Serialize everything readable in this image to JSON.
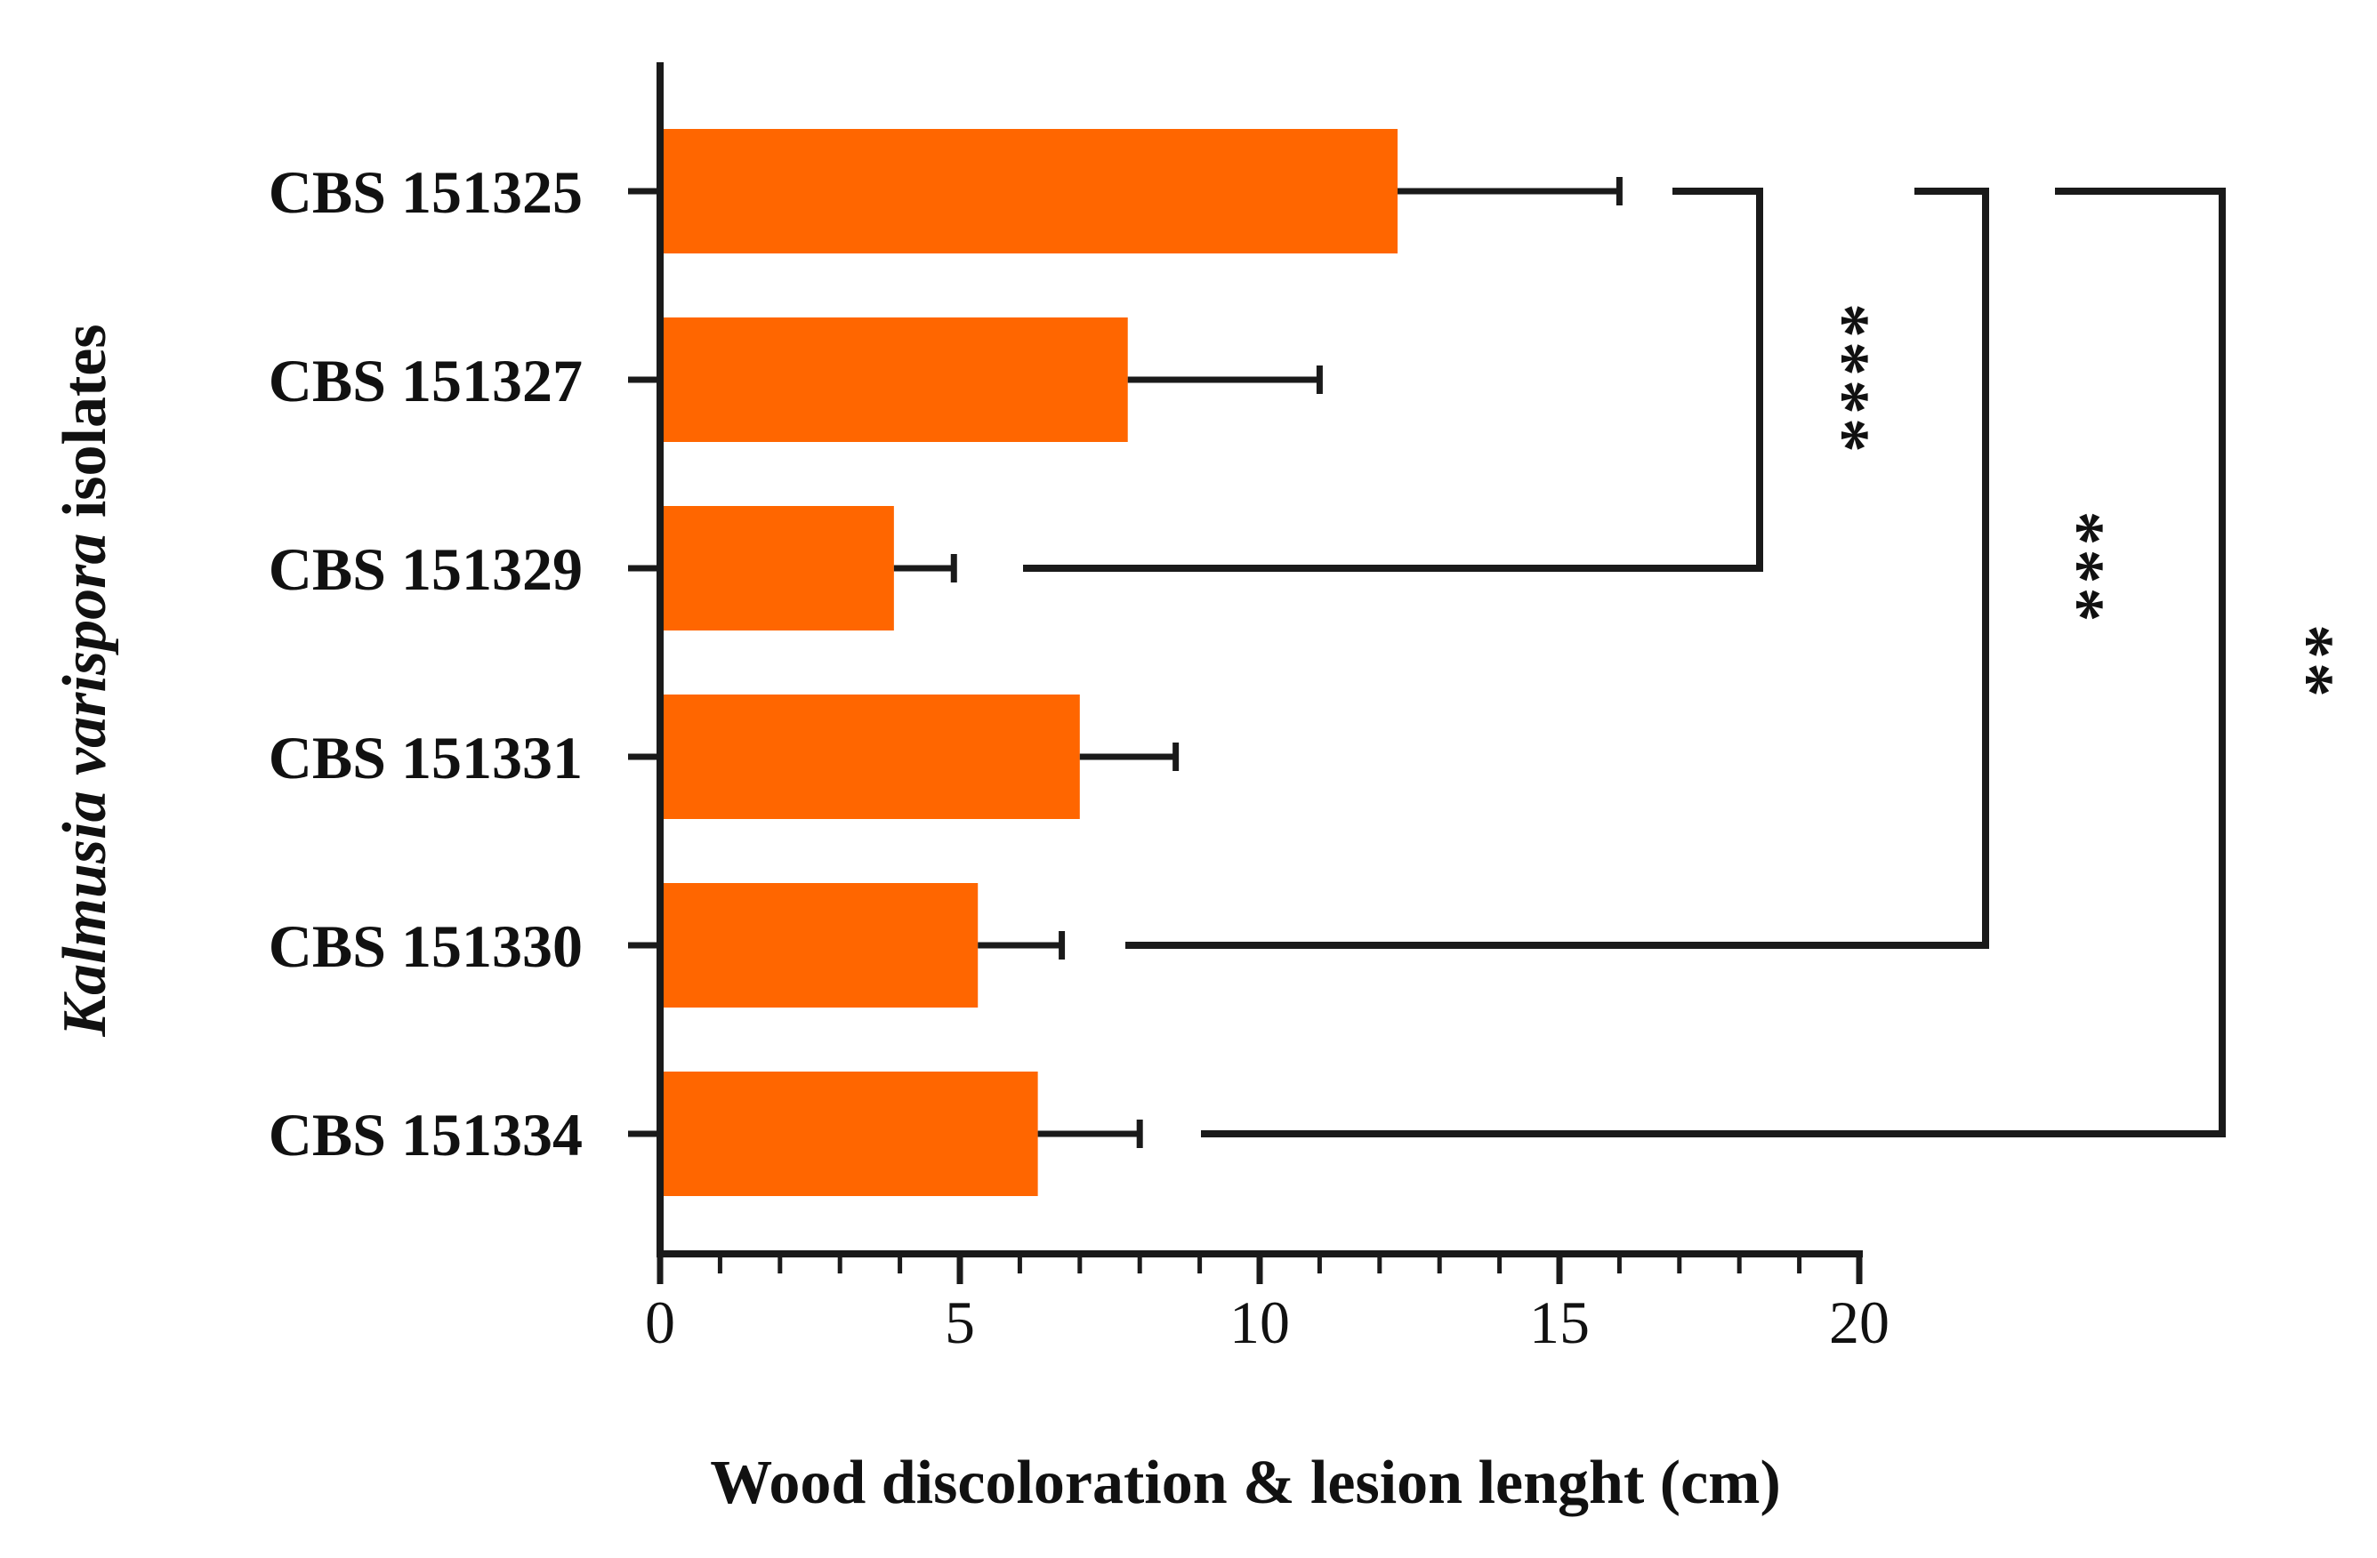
{
  "chart_data": {
    "type": "bar",
    "orientation": "horizontal",
    "categories": [
      "CBS 151325",
      "CBS 151327",
      "CBS 151329",
      "CBS 151331",
      "CBS 151330",
      "CBS 151334"
    ],
    "values": [
      12.3,
      7.8,
      3.9,
      7.0,
      5.3,
      6.3
    ],
    "error_upper": [
      16.0,
      11.0,
      4.9,
      8.6,
      6.7,
      8.0
    ],
    "xlabel": "Wood discoloration & lesion lenght (cm)",
    "ylabel_italic": "Kalmusia varispora",
    "ylabel_rest": " isolates",
    "xlim": [
      0,
      20
    ],
    "xticks": [
      "0",
      "5",
      "10",
      "15",
      "20"
    ],
    "grid": false,
    "bar_color": "#ff6600",
    "significance": [
      {
        "from": "CBS 151325",
        "to": "CBS 151329",
        "label": "****"
      },
      {
        "from": "CBS 151325",
        "to": "CBS 151330",
        "label": "***"
      },
      {
        "from": "CBS 151325",
        "to": "CBS 151334",
        "label": "**"
      }
    ]
  }
}
